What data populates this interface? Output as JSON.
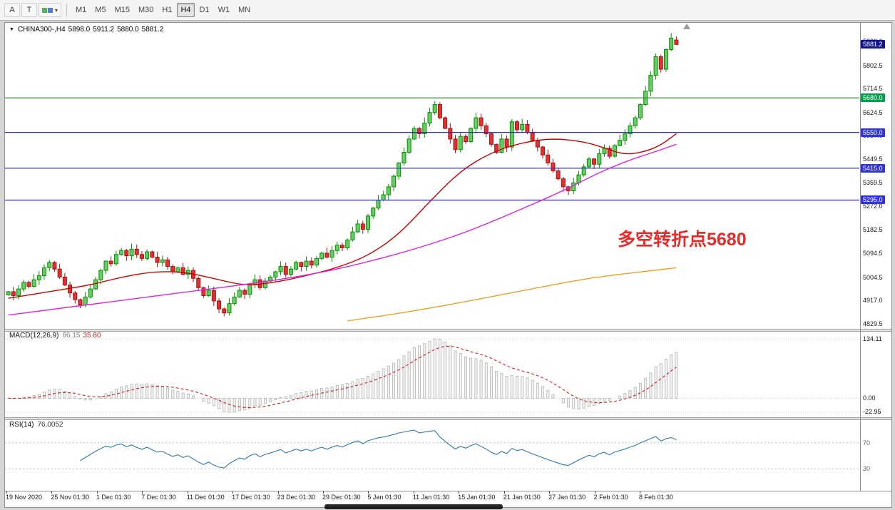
{
  "toolbar": {
    "tools": [
      {
        "label": "A"
      },
      {
        "label": "T"
      }
    ],
    "timeframes": [
      "M1",
      "M5",
      "M15",
      "M30",
      "H1",
      "H4",
      "D1",
      "W1",
      "MN"
    ],
    "active_timeframe": "H4"
  },
  "chart": {
    "symbol_tf": "CHINA300-,H4",
    "open": "5898.0",
    "high": "5911.2",
    "low": "5880.0",
    "close": "5881.2"
  },
  "colors": {
    "up_fill": "#66CC66",
    "up_stroke": "#089000",
    "down_fill": "#E23030",
    "down_stroke": "#A51515",
    "macd_hist": "#B5B5B5",
    "macd_signal": "#CC2222",
    "rsi_line": "#3377AA",
    "annotation": "#E82A2A",
    "badge_current": "#14148C"
  },
  "chart_data": {
    "type": "candlestick",
    "symbol": "CHINA300-",
    "timeframe": "H4",
    "ohlc_current": {
      "open": 5898.0,
      "high": 5911.2,
      "low": 5880.0,
      "close": 5881.2
    },
    "price_axis": {
      "ticks": [
        "5892.0",
        "5802.5",
        "5714.5",
        "5624.5",
        "5537.0",
        "5449.5",
        "5359.5",
        "5272.0",
        "5182.5",
        "5094.5",
        "5004.5",
        "4917.0",
        "4829.5"
      ],
      "current_label": "5881.2"
    },
    "levels": [
      {
        "price": 5680.0,
        "label": "5680.0",
        "line_color": "#009900",
        "badge_color": "#00A24C"
      },
      {
        "price": 5550.0,
        "label": "5550.0",
        "line_color": "#2A2ACC",
        "badge_color": "#3333DD"
      },
      {
        "price": 5415.0,
        "label": "5415.0",
        "line_color": "#2A2ACC",
        "badge_color": "#3333DD"
      },
      {
        "price": 5295.0,
        "label": "5295.0",
        "line_color": "#2A2ACC",
        "badge_color": "#3333DD"
      }
    ],
    "closes": [
      4950,
      4935,
      4960,
      4985,
      4970,
      4995,
      5010,
      5040,
      5060,
      5035,
      5005,
      4975,
      4945,
      4920,
      4900,
      4930,
      4960,
      4995,
      5030,
      5065,
      5055,
      5090,
      5105,
      5085,
      5110,
      5090,
      5075,
      5100,
      5080,
      5060,
      5070,
      5045,
      5025,
      5040,
      5015,
      5030,
      5000,
      4965,
      4935,
      4955,
      4915,
      4885,
      4870,
      4905,
      4930,
      4955,
      4940,
      4975,
      4995,
      4965,
      4990,
      5005,
      5025,
      5045,
      5015,
      5035,
      5060,
      5045,
      5065,
      5050,
      5075,
      5095,
      5080,
      5105,
      5125,
      5115,
      5145,
      5175,
      5205,
      5185,
      5235,
      5265,
      5295,
      5315,
      5345,
      5385,
      5435,
      5475,
      5525,
      5565,
      5545,
      5585,
      5625,
      5655,
      5605,
      5565,
      5525,
      5485,
      5535,
      5515,
      5565,
      5605,
      5575,
      5545,
      5505,
      5475,
      5525,
      5495,
      5590,
      5560,
      5580,
      5550,
      5520,
      5495,
      5465,
      5435,
      5405,
      5375,
      5345,
      5330,
      5360,
      5390,
      5420,
      5450,
      5430,
      5470,
      5490,
      5460,
      5500,
      5520,
      5545,
      5575,
      5605,
      5655,
      5705,
      5765,
      5835,
      5788,
      5862,
      5905,
      5881.2
    ],
    "wick_seed": {
      "high_base": 3,
      "high_mult": 53,
      "high_mod": 19,
      "low_base": 3,
      "low_mult": 31,
      "low_mod": 17
    },
    "moving_averages": [
      {
        "name": "ma-fast",
        "color": "#CC0000",
        "points": [
          [
            0,
            4925
          ],
          [
            8,
            4950
          ],
          [
            16,
            4975
          ],
          [
            22,
            5005
          ],
          [
            28,
            5025
          ],
          [
            34,
            5025
          ],
          [
            40,
            5000
          ],
          [
            46,
            4972
          ],
          [
            52,
            4985
          ],
          [
            58,
            5010
          ],
          [
            64,
            5040
          ],
          [
            70,
            5085
          ],
          [
            76,
            5165
          ],
          [
            82,
            5290
          ],
          [
            88,
            5405
          ],
          [
            94,
            5475
          ],
          [
            100,
            5512
          ],
          [
            106,
            5528
          ],
          [
            112,
            5515
          ],
          [
            116,
            5492
          ],
          [
            120,
            5465
          ],
          [
            124,
            5478
          ],
          [
            127,
            5502
          ],
          [
            130,
            5545
          ]
        ]
      },
      {
        "name": "ma-mid",
        "color": "#DD22DD",
        "points": [
          [
            0,
            4862
          ],
          [
            12,
            4892
          ],
          [
            24,
            4922
          ],
          [
            36,
            4952
          ],
          [
            48,
            4982
          ],
          [
            60,
            5018
          ],
          [
            70,
            5062
          ],
          [
            80,
            5115
          ],
          [
            90,
            5180
          ],
          [
            100,
            5262
          ],
          [
            108,
            5330
          ],
          [
            114,
            5390
          ],
          [
            120,
            5440
          ],
          [
            126,
            5478
          ],
          [
            130,
            5505
          ]
        ]
      },
      {
        "name": "ma-slow",
        "color": "#E8A128",
        "points": [
          [
            66,
            4840
          ],
          [
            74,
            4862
          ],
          [
            82,
            4888
          ],
          [
            90,
            4916
          ],
          [
            98,
            4946
          ],
          [
            106,
            4976
          ],
          [
            114,
            5004
          ],
          [
            122,
            5022
          ],
          [
            130,
            5040
          ]
        ]
      }
    ],
    "indicators": {
      "macd": {
        "label": "MACD(12,26,9)",
        "value": "86.15",
        "signal_value": "35.80",
        "axis_labels": [
          "134.11",
          "0.00",
          "-22.95"
        ],
        "fast": 12,
        "slow": 26,
        "signal": 9
      },
      "rsi": {
        "label": "RSI(14)",
        "value": "76.0052",
        "period": 14,
        "levels": [
          "70",
          "30"
        ]
      }
    },
    "time_axis": [
      "19 Nov 2020",
      "25 Nov 01:30",
      "1 Dec 01:30",
      "7 Dec 01:30",
      "11 Dec 01:30",
      "17 Dec 01:30",
      "23 Dec 01:30",
      "29 Dec 01:30",
      "5 Jan 01:30",
      "11 Jan 01:30",
      "15 Jan 01:30",
      "21 Jan 01:30",
      "27 Jan 01:30",
      "2 Feb 01:30",
      "8 Feb 01:30"
    ],
    "annotation": {
      "text": "多空转折点5680",
      "color": "#E82A2A"
    }
  }
}
